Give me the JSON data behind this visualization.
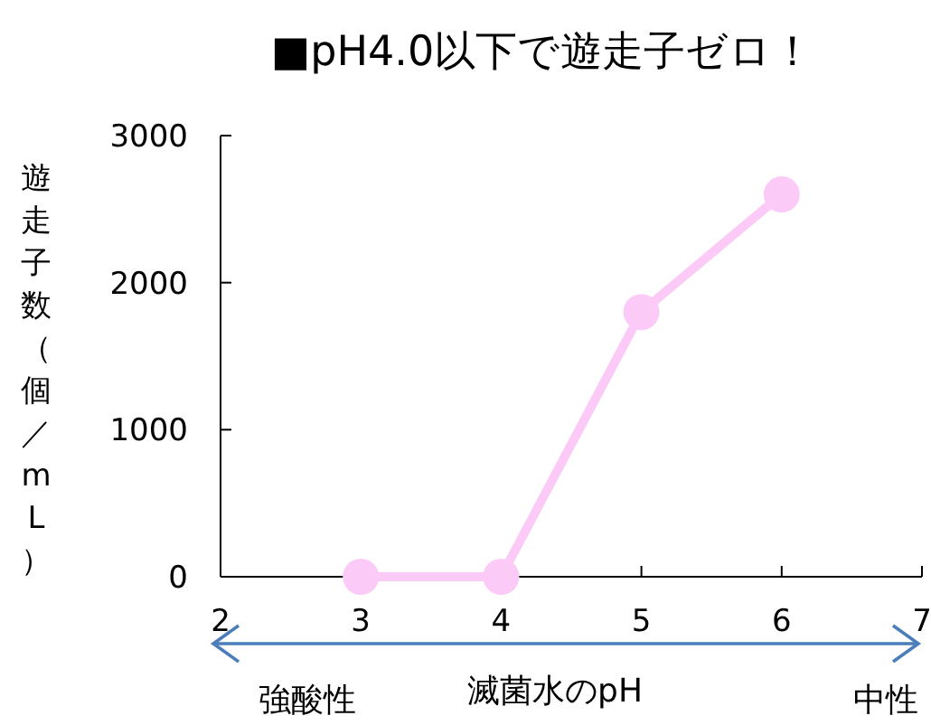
{
  "chart_data": {
    "type": "line",
    "title": "■pH4.0以下で遊走子ゼロ！",
    "xlabel": "滅菌水のpH",
    "ylabel": "遊走子数（個／mL）",
    "annotations": [
      "強酸性",
      "中性"
    ],
    "x": [
      3,
      4,
      5,
      6
    ],
    "series": [
      {
        "color": "#fccaf7",
        "values": [
          0,
          0,
          1800,
          2600
        ]
      }
    ],
    "xlim": [
      2,
      7
    ],
    "xticks": [
      2,
      3,
      4,
      5,
      6,
      7
    ],
    "ylim": [
      0,
      3000
    ],
    "yticks": [
      0,
      1000,
      2000,
      3000
    ],
    "marker": "circle",
    "line_style": "solid",
    "grid": false
  }
}
